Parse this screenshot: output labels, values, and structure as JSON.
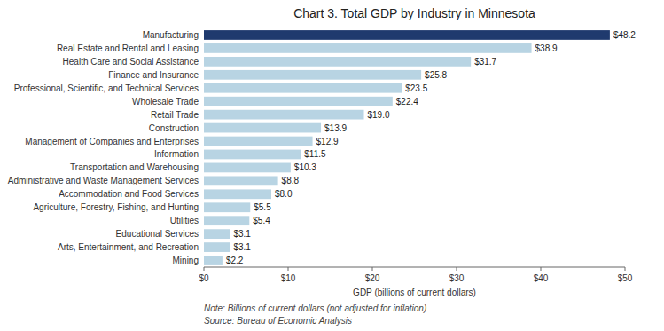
{
  "chart_data": {
    "type": "bar",
    "orientation": "horizontal",
    "title": "Chart 3. Total GDP by Industry in Minnesota",
    "xlabel": "GDP (billions of current dollars)",
    "annotations": [
      "Note: Billions of current dollars (not adjusted for inflation)",
      "Source: Bureau of Economic Analysis"
    ],
    "categories": [
      "Mining",
      "Arts, Entertainment, and Recreation",
      "Educational Services",
      "Utilities",
      "Agriculture, Forestry, Fishing, and Hunting",
      "Accommodation and Food Services",
      "Administrative and Waste Management Services",
      "Transportation and Warehousing",
      "Information",
      "Management of Companies and Enterprises",
      "Construction",
      "Retail Trade",
      "Wholesale Trade",
      "Professional, Scientific, and Technical Services",
      "Finance and Insurance",
      "Health Care and Social Assistance",
      "Real Estate and Rental and Leasing",
      "Manufacturing"
    ],
    "values": [
      2.2,
      3.1,
      3.1,
      5.4,
      5.5,
      8.0,
      8.8,
      10.3,
      11.5,
      12.9,
      13.9,
      19.0,
      22.4,
      23.5,
      25.8,
      31.7,
      38.9,
      48.2
    ],
    "value_labels": [
      "$2.2",
      "$3.1",
      "$3.1",
      "$5.4",
      "$5.5",
      "$8.0",
      "$8.8",
      "$10.3",
      "$11.5",
      "$12.9",
      "$13.9",
      "$19.0",
      "$22.4",
      "$23.5",
      "$25.8",
      "$31.7",
      "$38.9",
      "$48.2"
    ],
    "data_labels": true,
    "colors": [
      "#b8d4e3",
      "#b8d4e3",
      "#b8d4e3",
      "#b8d4e3",
      "#b8d4e3",
      "#b8d4e3",
      "#b8d4e3",
      "#b8d4e3",
      "#b8d4e3",
      "#b8d4e3",
      "#b8d4e3",
      "#b8d4e3",
      "#b8d4e3",
      "#b8d4e3",
      "#b8d4e3",
      "#b8d4e3",
      "#b8d4e3",
      "#1f3a6e"
    ],
    "xlim": [
      0,
      50
    ],
    "xticks": [
      {
        "value": 0,
        "label": "$0"
      },
      {
        "value": 10,
        "label": "$10"
      },
      {
        "value": 20,
        "label": "$20"
      },
      {
        "value": 30,
        "label": "$30"
      },
      {
        "value": 40,
        "label": "$40"
      },
      {
        "value": 50,
        "label": "$50"
      }
    ],
    "grid": false
  }
}
